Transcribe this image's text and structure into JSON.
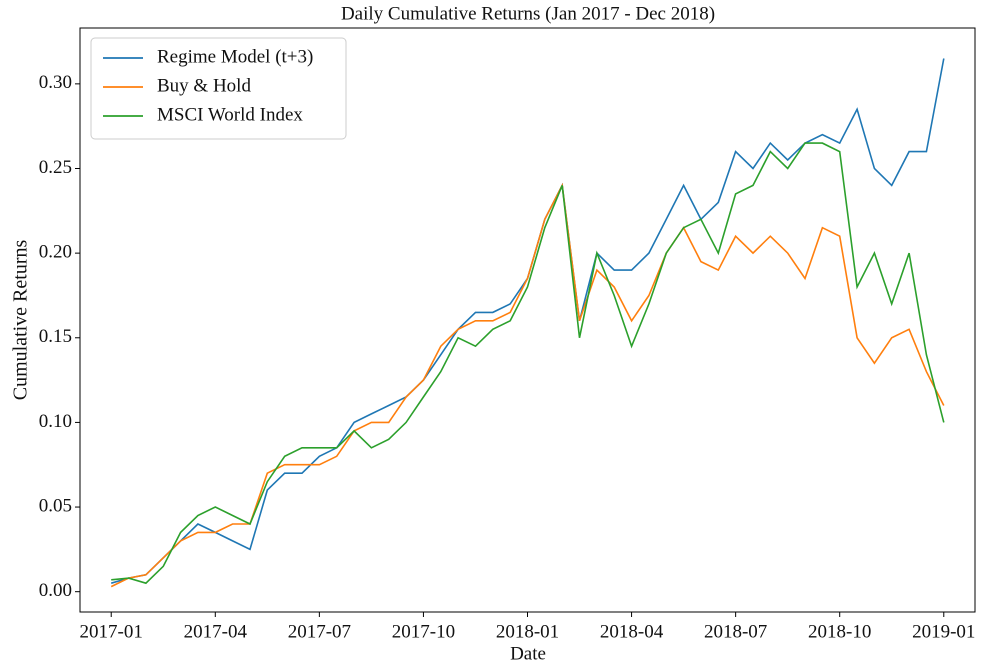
{
  "chart_data": {
    "type": "line",
    "title": "Daily Cumulative Returns (Jan 2017 - Dec 2018)",
    "xlabel": "Date",
    "ylabel": "Cumulative Returns",
    "x": [
      0,
      0.5,
      1,
      1.5,
      2,
      2.5,
      3,
      3.5,
      4,
      4.5,
      5,
      5.5,
      6,
      6.5,
      7,
      7.5,
      8,
      8.5,
      9,
      9.5,
      10,
      10.5,
      11,
      11.5,
      12,
      12.5,
      13,
      13.5,
      14,
      14.5,
      15,
      15.5,
      16,
      16.5,
      17,
      17.5,
      18,
      18.5,
      19,
      19.5,
      20,
      20.5,
      21,
      21.5,
      22,
      22.5,
      23,
      23.5,
      24
    ],
    "series": [
      {
        "name": "Regime Model (t+3)",
        "color": "#1f77b4",
        "values": [
          0.005,
          0.008,
          0.01,
          0.02,
          0.03,
          0.04,
          0.035,
          0.03,
          0.025,
          0.06,
          0.07,
          0.07,
          0.08,
          0.085,
          0.1,
          0.105,
          0.11,
          0.115,
          0.125,
          0.14,
          0.155,
          0.165,
          0.165,
          0.17,
          0.185,
          0.22,
          0.24,
          0.16,
          0.2,
          0.19,
          0.19,
          0.2,
          0.22,
          0.24,
          0.22,
          0.23,
          0.26,
          0.25,
          0.265,
          0.255,
          0.265,
          0.27,
          0.265,
          0.285,
          0.25,
          0.24,
          0.26,
          0.26,
          0.315
        ]
      },
      {
        "name": "Buy & Hold",
        "color": "#ff7f0e",
        "values": [
          0.003,
          0.008,
          0.01,
          0.02,
          0.03,
          0.035,
          0.035,
          0.04,
          0.04,
          0.07,
          0.075,
          0.075,
          0.075,
          0.08,
          0.095,
          0.1,
          0.1,
          0.115,
          0.125,
          0.145,
          0.155,
          0.16,
          0.16,
          0.165,
          0.185,
          0.22,
          0.24,
          0.16,
          0.19,
          0.18,
          0.16,
          0.175,
          0.2,
          0.215,
          0.195,
          0.19,
          0.21,
          0.2,
          0.21,
          0.2,
          0.185,
          0.215,
          0.21,
          0.15,
          0.135,
          0.15,
          0.155,
          0.13,
          0.11
        ]
      },
      {
        "name": "MSCI World Index",
        "color": "#2ca02c",
        "values": [
          0.007,
          0.008,
          0.005,
          0.015,
          0.035,
          0.045,
          0.05,
          0.045,
          0.04,
          0.065,
          0.08,
          0.085,
          0.085,
          0.085,
          0.095,
          0.085,
          0.09,
          0.1,
          0.115,
          0.13,
          0.15,
          0.145,
          0.155,
          0.16,
          0.18,
          0.215,
          0.24,
          0.15,
          0.2,
          0.175,
          0.145,
          0.17,
          0.2,
          0.215,
          0.22,
          0.2,
          0.235,
          0.24,
          0.26,
          0.25,
          0.265,
          0.265,
          0.26,
          0.18,
          0.2,
          0.17,
          0.2,
          0.14,
          0.1
        ]
      }
    ],
    "xlim": [
      -0.9,
      24.9
    ],
    "xticks": [
      {
        "value": 0,
        "label": "2017-01"
      },
      {
        "value": 3,
        "label": "2017-04"
      },
      {
        "value": 6,
        "label": "2017-07"
      },
      {
        "value": 9,
        "label": "2017-10"
      },
      {
        "value": 12,
        "label": "2018-01"
      },
      {
        "value": 15,
        "label": "2018-04"
      },
      {
        "value": 18,
        "label": "2018-07"
      },
      {
        "value": 21,
        "label": "2018-10"
      },
      {
        "value": 24,
        "label": "2019-01"
      }
    ],
    "ylim": [
      -0.012,
      0.333
    ],
    "yticks": [
      {
        "value": 0,
        "label": "0.00"
      },
      {
        "value": 0.05,
        "label": "0.05"
      },
      {
        "value": 0.1,
        "label": "0.10"
      },
      {
        "value": 0.15,
        "label": "0.15"
      },
      {
        "value": 0.2,
        "label": "0.20"
      },
      {
        "value": 0.25,
        "label": "0.25"
      },
      {
        "value": 0.3,
        "label": "0.30"
      }
    ],
    "legend": "upper left",
    "grid": false
  }
}
